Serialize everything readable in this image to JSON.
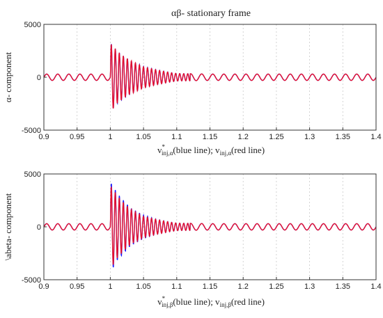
{
  "chart_data": [
    {
      "type": "line",
      "title": "αβ- stationary frame",
      "ylabel": "α- component",
      "xlabel": {
        "v": "v",
        "sup": "*",
        "sub1": "inj,α",
        "mid": "(blue line); v",
        "sub2": "inj,α",
        "end": "(red line)"
      },
      "xlim": [
        0.9,
        1.4
      ],
      "ylim": [
        -5000,
        5000
      ],
      "xticks": [
        "0.9",
        "0.95",
        "1",
        "1.05",
        "1.1",
        "1.15",
        "1.2",
        "1.25",
        "1.3",
        "1.35",
        "1.4"
      ],
      "yticks": [
        "5000",
        "0",
        "-5000"
      ],
      "grid": "vertical dotted",
      "series": [
        {
          "color": "#1a1aff",
          "x": [
            0.9,
            0.95,
            1.0,
            1.0007,
            1.0016,
            1.01,
            1.02,
            1.03,
            1.05,
            1.07,
            1.09,
            1.1,
            1.15,
            1.2,
            1.3,
            1.4
          ],
          "envelope": [
            300,
            300,
            300,
            2900,
            3200,
            2500,
            2000,
            1600,
            1000,
            700,
            450,
            350,
            300,
            300,
            300,
            300
          ]
        },
        {
          "color": "#e8102a",
          "x": [
            0.9,
            0.95,
            1.0,
            1.0007,
            1.0016,
            1.01,
            1.02,
            1.03,
            1.05,
            1.07,
            1.09,
            1.1,
            1.15,
            1.2,
            1.3,
            1.4
          ],
          "envelope": [
            300,
            300,
            300,
            2700,
            3200,
            2500,
            2000,
            1600,
            1000,
            700,
            450,
            350,
            300,
            300,
            300,
            300
          ]
        }
      ]
    },
    {
      "type": "line",
      "title": "",
      "ylabel": "\\abeta- component",
      "xlabel": {
        "v": "v",
        "sup": "*",
        "sub1": "inj,β",
        "mid": "(blue line); v",
        "sub2": "inj,β",
        "end": "(red line)"
      },
      "xlim": [
        0.9,
        1.4
      ],
      "ylim": [
        -5000,
        5000
      ],
      "xticks": [
        "0.9",
        "0.95",
        "1",
        "1.05",
        "1.1",
        "1.15",
        "1.2",
        "1.25",
        "1.3",
        "1.35",
        "1.4"
      ],
      "yticks": [
        "5000",
        "0",
        "-5000"
      ],
      "grid": "vertical dotted",
      "series": [
        {
          "color": "#1a1aff",
          "x": [
            0.9,
            0.95,
            1.0,
            1.0007,
            1.0016,
            1.01,
            1.02,
            1.03,
            1.05,
            1.07,
            1.09,
            1.1,
            1.15,
            1.2,
            1.3,
            1.4
          ],
          "envelope": [
            300,
            300,
            300,
            3600,
            4200,
            3200,
            2500,
            1800,
            1100,
            700,
            450,
            350,
            300,
            300,
            300,
            300
          ]
        },
        {
          "color": "#e8102a",
          "x": [
            0.9,
            0.95,
            1.0,
            1.0007,
            1.0016,
            1.01,
            1.02,
            1.03,
            1.05,
            1.07,
            1.09,
            1.1,
            1.15,
            1.2,
            1.3,
            1.4
          ],
          "envelope": [
            300,
            300,
            300,
            3300,
            3900,
            3000,
            2300,
            1700,
            1000,
            700,
            450,
            350,
            300,
            300,
            300,
            300
          ]
        }
      ]
    }
  ]
}
